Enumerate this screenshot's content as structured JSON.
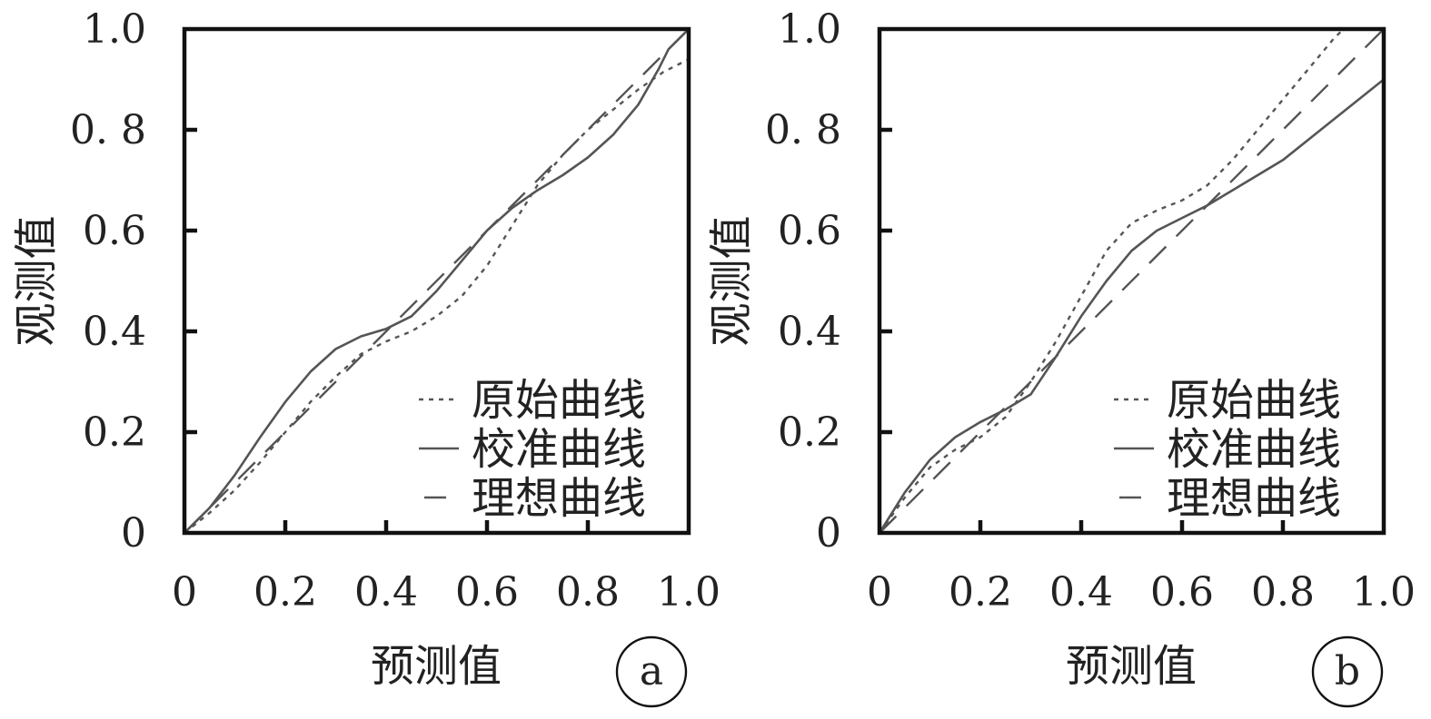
{
  "chart_data": [
    {
      "type": "line",
      "panel_label": "a",
      "xlabel": "预测值",
      "ylabel": "观测值",
      "xlim": [
        0,
        1
      ],
      "ylim": [
        0,
        1
      ],
      "x_ticks": [
        "0",
        "0.2",
        "0.4",
        "0.6",
        "0.8",
        "1.0"
      ],
      "y_ticks": [
        "0",
        "0.2",
        "0.4",
        "0.6",
        "0. 8",
        "1.0"
      ],
      "legend_position": "bottom-right",
      "grid": false,
      "series": [
        {
          "name": "原始曲线",
          "style": "dotted",
          "points": [
            [
              0,
              0
            ],
            [
              0.05,
              0.04
            ],
            [
              0.1,
              0.085
            ],
            [
              0.15,
              0.14
            ],
            [
              0.2,
              0.2
            ],
            [
              0.25,
              0.26
            ],
            [
              0.3,
              0.31
            ],
            [
              0.35,
              0.355
            ],
            [
              0.4,
              0.38
            ],
            [
              0.45,
              0.4
            ],
            [
              0.5,
              0.43
            ],
            [
              0.55,
              0.47
            ],
            [
              0.6,
              0.53
            ],
            [
              0.65,
              0.61
            ],
            [
              0.7,
              0.69
            ],
            [
              0.75,
              0.75
            ],
            [
              0.8,
              0.8
            ],
            [
              0.85,
              0.84
            ],
            [
              0.9,
              0.88
            ],
            [
              0.95,
              0.915
            ],
            [
              1.0,
              0.94
            ]
          ]
        },
        {
          "name": "校准曲线",
          "style": "solid",
          "points": [
            [
              0,
              0
            ],
            [
              0.05,
              0.05
            ],
            [
              0.1,
              0.115
            ],
            [
              0.15,
              0.19
            ],
            [
              0.2,
              0.26
            ],
            [
              0.25,
              0.32
            ],
            [
              0.3,
              0.365
            ],
            [
              0.35,
              0.39
            ],
            [
              0.4,
              0.405
            ],
            [
              0.45,
              0.43
            ],
            [
              0.5,
              0.48
            ],
            [
              0.55,
              0.54
            ],
            [
              0.6,
              0.6
            ],
            [
              0.65,
              0.645
            ],
            [
              0.7,
              0.68
            ],
            [
              0.75,
              0.71
            ],
            [
              0.8,
              0.745
            ],
            [
              0.85,
              0.79
            ],
            [
              0.9,
              0.85
            ],
            [
              0.94,
              0.92
            ],
            [
              0.96,
              0.96
            ],
            [
              1.0,
              1.0
            ]
          ]
        },
        {
          "name": "理想曲线",
          "style": "dashed",
          "points": [
            [
              0,
              0
            ],
            [
              1,
              1
            ]
          ]
        }
      ]
    },
    {
      "type": "line",
      "panel_label": "b",
      "xlabel": "预测值",
      "ylabel": "观测值",
      "xlim": [
        0,
        1
      ],
      "ylim": [
        0,
        1
      ],
      "x_ticks": [
        "0",
        "0.2",
        "0.4",
        "0.6",
        "0.8",
        "1.0"
      ],
      "y_ticks": [
        "0",
        "0.2",
        "0.4",
        "0.6",
        "0. 8",
        "1.0"
      ],
      "legend_position": "bottom-right",
      "grid": false,
      "series": [
        {
          "name": "原始曲线",
          "style": "dotted",
          "points": [
            [
              0,
              0
            ],
            [
              0.05,
              0.07
            ],
            [
              0.1,
              0.13
            ],
            [
              0.15,
              0.165
            ],
            [
              0.2,
              0.19
            ],
            [
              0.25,
              0.23
            ],
            [
              0.3,
              0.3
            ],
            [
              0.35,
              0.38
            ],
            [
              0.4,
              0.47
            ],
            [
              0.45,
              0.56
            ],
            [
              0.5,
              0.615
            ],
            [
              0.55,
              0.64
            ],
            [
              0.6,
              0.66
            ],
            [
              0.65,
              0.69
            ],
            [
              0.7,
              0.74
            ],
            [
              0.75,
              0.8
            ],
            [
              0.8,
              0.86
            ],
            [
              0.85,
              0.92
            ],
            [
              0.9,
              0.98
            ],
            [
              0.92,
              1.0
            ]
          ]
        },
        {
          "name": "校准曲线",
          "style": "solid",
          "points": [
            [
              0,
              0
            ],
            [
              0.05,
              0.08
            ],
            [
              0.1,
              0.145
            ],
            [
              0.15,
              0.19
            ],
            [
              0.2,
              0.22
            ],
            [
              0.25,
              0.245
            ],
            [
              0.3,
              0.275
            ],
            [
              0.35,
              0.35
            ],
            [
              0.4,
              0.43
            ],
            [
              0.45,
              0.5
            ],
            [
              0.5,
              0.56
            ],
            [
              0.55,
              0.6
            ],
            [
              0.6,
              0.625
            ],
            [
              0.65,
              0.65
            ],
            [
              0.7,
              0.68
            ],
            [
              0.8,
              0.74
            ],
            [
              0.9,
              0.82
            ],
            [
              1.0,
              0.9
            ]
          ]
        },
        {
          "name": "理想曲线",
          "style": "dashed",
          "points": [
            [
              0,
              0
            ],
            [
              1,
              1
            ]
          ]
        }
      ]
    }
  ],
  "colors": {
    "axis": "#111111",
    "curve": "#555555",
    "text": "#222222"
  }
}
